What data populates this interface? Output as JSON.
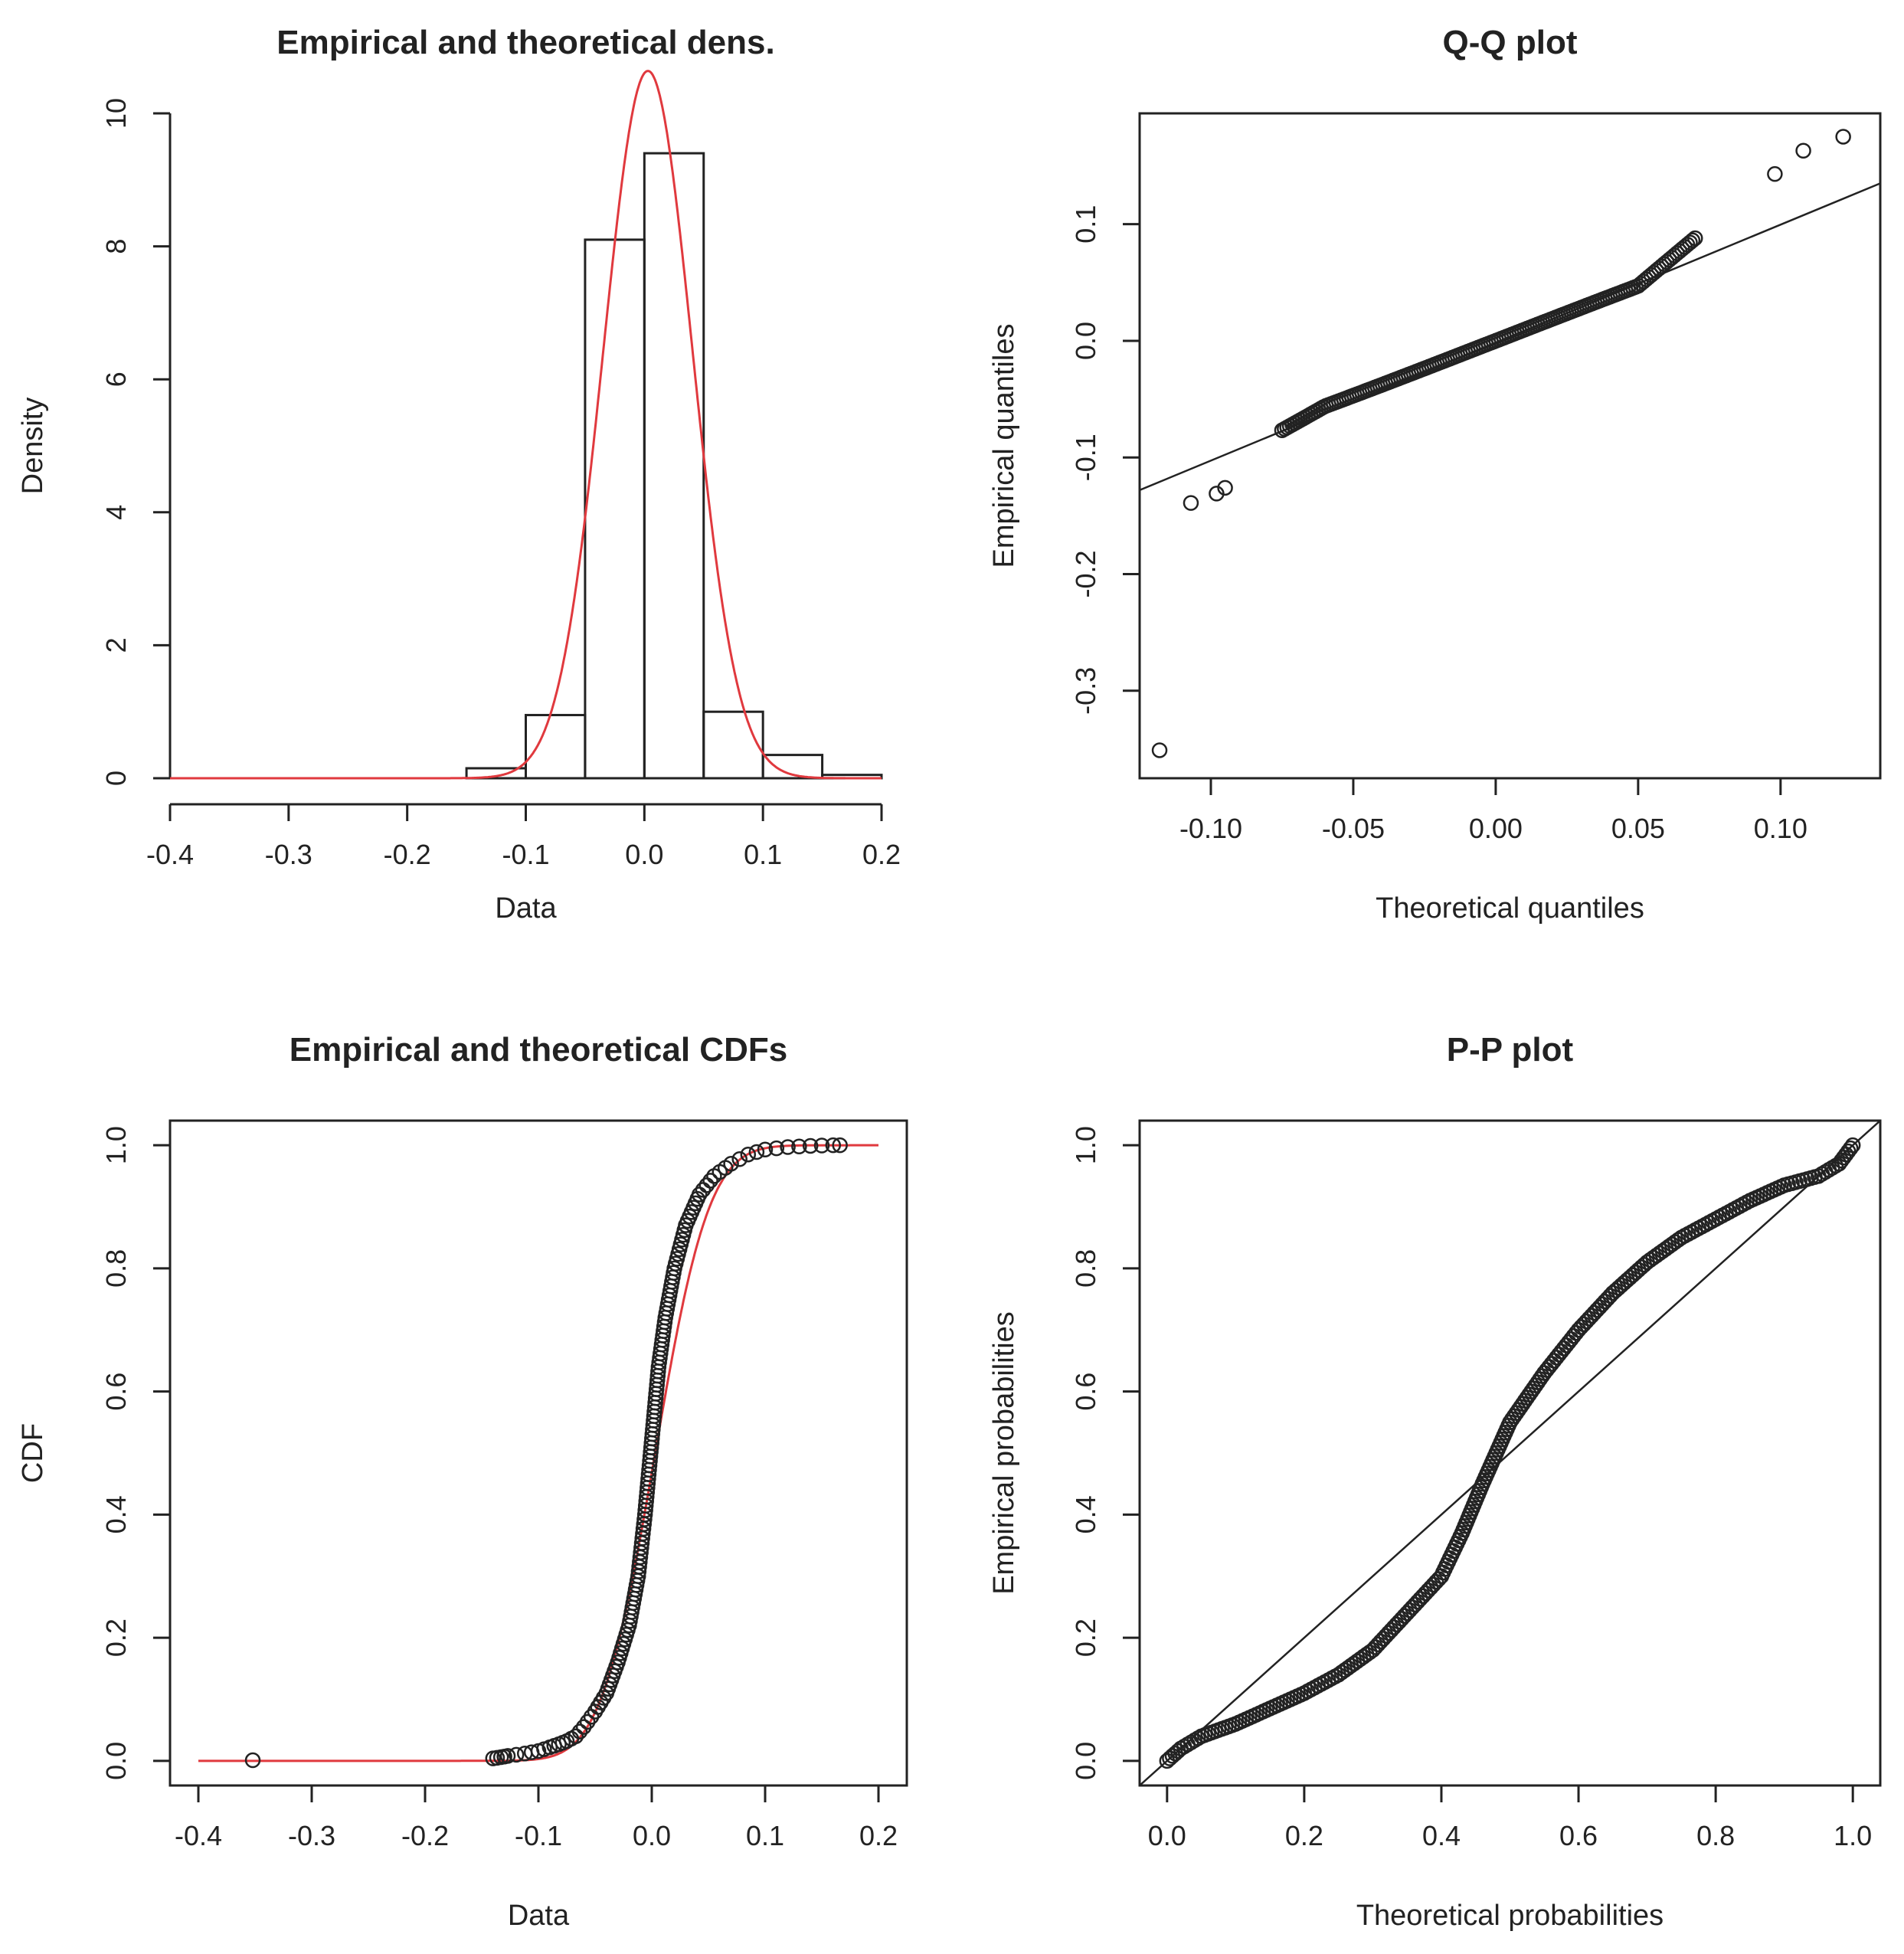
{
  "chart_data": [
    {
      "type": "histogram",
      "title": "Empirical and theoretical dens.",
      "xlabel": "Data",
      "ylabel": "Density",
      "xlim": [
        -0.4,
        0.2
      ],
      "ylim": [
        0,
        10
      ],
      "xticks": [
        "-0.4",
        "-0.3",
        "-0.2",
        "-0.1",
        "0.0",
        "0.1",
        "0.2"
      ],
      "yticks": [
        "0",
        "2",
        "4",
        "6",
        "8",
        "10"
      ],
      "bins": [
        {
          "from": -0.15,
          "to": -0.1,
          "density": 0.15
        },
        {
          "from": -0.1,
          "to": -0.05,
          "density": 0.95
        },
        {
          "from": -0.05,
          "to": 0.0,
          "density": 8.1
        },
        {
          "from": 0.0,
          "to": 0.05,
          "density": 9.4
        },
        {
          "from": 0.05,
          "to": 0.1,
          "density": 1.0
        },
        {
          "from": 0.1,
          "to": 0.15,
          "density": 0.35
        },
        {
          "from": 0.15,
          "to": 0.2,
          "density": 0.05
        }
      ],
      "density_curve": {
        "mean": 0.003,
        "sd": 0.0375,
        "peak": 10.6,
        "color": "#e0393e"
      },
      "bar_color": "#222222",
      "box": false
    },
    {
      "type": "scatter",
      "title": "Q-Q plot",
      "xlabel": "Theoretical quantiles",
      "ylabel": "Empirical quantiles",
      "xlim": [
        -0.125,
        0.135
      ],
      "ylim": [
        -0.375,
        0.195
      ],
      "xticks": [
        "-0.10",
        "-0.05",
        "0.00",
        "0.05",
        "0.10"
      ],
      "yticks": [
        "-0.3",
        "-0.2",
        "-0.1",
        "0.0",
        "0.1"
      ],
      "reference_line": [
        [
          -0.125,
          -0.128
        ],
        [
          0.135,
          0.135
        ]
      ],
      "outliers": [
        [
          -0.118,
          -0.351
        ],
        [
          -0.107,
          -0.139
        ],
        [
          -0.098,
          -0.131
        ],
        [
          -0.095,
          -0.126
        ],
        [
          0.098,
          0.143
        ],
        [
          0.108,
          0.163
        ],
        [
          0.122,
          0.175
        ]
      ],
      "point_color": "#222222",
      "box": true
    },
    {
      "type": "line",
      "title": "Empirical and theoretical CDFs",
      "xlabel": "Data",
      "ylabel": "CDF",
      "xlim": [
        -0.425,
        0.225
      ],
      "ylim": [
        -0.04,
        1.04
      ],
      "xticks": [
        "-0.4",
        "-0.3",
        "-0.2",
        "-0.1",
        "0.0",
        "0.1",
        "0.2"
      ],
      "yticks": [
        "0.0",
        "0.2",
        "0.4",
        "0.6",
        "0.8",
        "1.0"
      ],
      "theoretical": {
        "mean": 0.003,
        "sd": 0.0375,
        "color": "#e0393e"
      },
      "empirical_points": [
        [
          -0.352,
          0.001
        ],
        [
          -0.14,
          0.004
        ],
        [
          -0.133,
          0.006
        ],
        [
          -0.127,
          0.008
        ],
        [
          -0.112,
          0.012
        ],
        [
          -0.1,
          0.016
        ],
        [
          -0.09,
          0.022
        ],
        [
          -0.082,
          0.027
        ],
        [
          -0.075,
          0.032
        ],
        [
          -0.067,
          0.04
        ],
        [
          -0.06,
          0.055
        ],
        [
          -0.05,
          0.08
        ],
        [
          -0.04,
          0.11
        ],
        [
          -0.03,
          0.16
        ],
        [
          -0.02,
          0.22
        ],
        [
          -0.012,
          0.3
        ],
        [
          -0.006,
          0.4
        ],
        [
          -0.002,
          0.48
        ],
        [
          0.002,
          0.56
        ],
        [
          0.006,
          0.64
        ],
        [
          0.012,
          0.72
        ],
        [
          0.02,
          0.8
        ],
        [
          0.03,
          0.87
        ],
        [
          0.042,
          0.92
        ],
        [
          0.055,
          0.95
        ],
        [
          0.07,
          0.97
        ],
        [
          0.085,
          0.985
        ],
        [
          0.1,
          0.993
        ],
        [
          0.12,
          0.997
        ],
        [
          0.14,
          0.999
        ],
        [
          0.16,
          1.0
        ],
        [
          0.172,
          1.0
        ]
      ],
      "point_color": "#222222",
      "box": true
    },
    {
      "type": "scatter",
      "title": "P-P plot",
      "xlabel": "Theoretical probabilities",
      "ylabel": "Empirical probabilities",
      "xlim": [
        -0.04,
        1.04
      ],
      "ylim": [
        -0.04,
        1.04
      ],
      "xticks": [
        "0.0",
        "0.2",
        "0.4",
        "0.6",
        "0.8",
        "1.0"
      ],
      "yticks": [
        "0.0",
        "0.2",
        "0.4",
        "0.6",
        "0.8",
        "1.0"
      ],
      "reference_line": [
        [
          -0.04,
          -0.04
        ],
        [
          1.04,
          1.04
        ]
      ],
      "curve": [
        [
          0.0,
          0.0
        ],
        [
          0.02,
          0.02
        ],
        [
          0.05,
          0.04
        ],
        [
          0.1,
          0.06
        ],
        [
          0.15,
          0.085
        ],
        [
          0.2,
          0.11
        ],
        [
          0.25,
          0.14
        ],
        [
          0.3,
          0.18
        ],
        [
          0.35,
          0.24
        ],
        [
          0.4,
          0.3
        ],
        [
          0.43,
          0.37
        ],
        [
          0.46,
          0.45
        ],
        [
          0.5,
          0.55
        ],
        [
          0.55,
          0.63
        ],
        [
          0.6,
          0.7
        ],
        [
          0.65,
          0.76
        ],
        [
          0.7,
          0.81
        ],
        [
          0.75,
          0.85
        ],
        [
          0.8,
          0.88
        ],
        [
          0.85,
          0.91
        ],
        [
          0.9,
          0.935
        ],
        [
          0.95,
          0.95
        ],
        [
          0.98,
          0.97
        ],
        [
          1.0,
          1.0
        ]
      ],
      "point_color": "#222222",
      "box": true
    }
  ]
}
